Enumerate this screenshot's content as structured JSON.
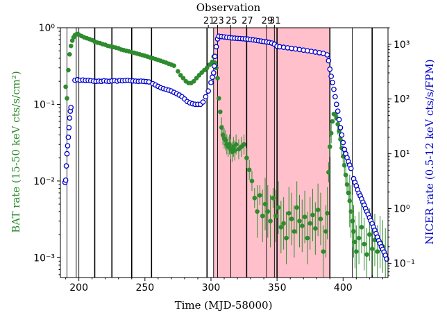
{
  "chart_data": {
    "type": "scatter",
    "title": "Observation",
    "xlabel": "Time (MJD-58000)",
    "ylabel_left": "BAT rate (15-50 keV cts/s/cm²)",
    "ylabel_right": "NICER rate (0.5-12 keV cts/s/FPM)",
    "xlim": [
      186,
      434
    ],
    "ylim_left": [
      0.00055,
      1.0
    ],
    "ylim_right": [
      0.055,
      2000
    ],
    "yscale": "log",
    "x_ticks": [
      200,
      250,
      300,
      350,
      400
    ],
    "x_tick_labels": [
      "200",
      "250",
      "300",
      "350",
      "400"
    ],
    "y_left_ticks": [
      1.0,
      0.1,
      0.01,
      0.001
    ],
    "y_left_tick_labels": [
      "10⁰",
      "10⁻¹",
      "10⁻²",
      "10⁻³"
    ],
    "y_right_ticks": [
      1000,
      100,
      10,
      1,
      0.1
    ],
    "y_right_tick_labels": [
      "10³",
      "10²",
      "10¹",
      "10⁰",
      "10⁻¹"
    ],
    "top_tick_labels": [
      "21",
      "23",
      "25",
      "27",
      "29",
      "31"
    ],
    "shaded_region": [
      302,
      390
    ],
    "shaded_color": "#ffc0cb",
    "observation_lines": [
      191,
      198,
      200,
      212,
      225,
      240,
      255,
      297,
      302,
      305,
      315,
      327,
      342,
      348,
      350,
      390,
      407,
      422
    ],
    "series": [
      {
        "name": "BAT",
        "color": "#2e8b2e",
        "points": [
          [
            190,
            0.17
          ],
          [
            191,
            0.12
          ],
          [
            192,
            0.28
          ],
          [
            193,
            0.45
          ],
          [
            194,
            0.58
          ],
          [
            195,
            0.68
          ],
          [
            196,
            0.75
          ],
          [
            197,
            0.8
          ],
          [
            198,
            0.82
          ],
          [
            199,
            0.83
          ],
          [
            200,
            0.81
          ],
          [
            202,
            0.78
          ],
          [
            204,
            0.75
          ],
          [
            206,
            0.73
          ],
          [
            208,
            0.71
          ],
          [
            210,
            0.69
          ],
          [
            212,
            0.66
          ],
          [
            214,
            0.64
          ],
          [
            216,
            0.63
          ],
          [
            218,
            0.61
          ],
          [
            220,
            0.6
          ],
          [
            222,
            0.58
          ],
          [
            224,
            0.57
          ],
          [
            226,
            0.56
          ],
          [
            228,
            0.55
          ],
          [
            230,
            0.54
          ],
          [
            232,
            0.52
          ],
          [
            234,
            0.51
          ],
          [
            236,
            0.5
          ],
          [
            238,
            0.49
          ],
          [
            240,
            0.48
          ],
          [
            242,
            0.47
          ],
          [
            244,
            0.46
          ],
          [
            246,
            0.45
          ],
          [
            248,
            0.44
          ],
          [
            250,
            0.43
          ],
          [
            252,
            0.42
          ],
          [
            254,
            0.41
          ],
          [
            256,
            0.4
          ],
          [
            258,
            0.39
          ],
          [
            260,
            0.38
          ],
          [
            262,
            0.37
          ],
          [
            264,
            0.36
          ],
          [
            266,
            0.35
          ],
          [
            268,
            0.34
          ],
          [
            270,
            0.33
          ],
          [
            272,
            0.32
          ],
          [
            275,
            0.27
          ],
          [
            277,
            0.24
          ],
          [
            279,
            0.22
          ],
          [
            281,
            0.2
          ],
          [
            283,
            0.19
          ],
          [
            285,
            0.19
          ],
          [
            287,
            0.2
          ],
          [
            289,
            0.22
          ],
          [
            291,
            0.24
          ],
          [
            293,
            0.26
          ],
          [
            295,
            0.28
          ],
          [
            297,
            0.3
          ],
          [
            299,
            0.33
          ],
          [
            301,
            0.36
          ],
          [
            302,
            0.42
          ],
          [
            303,
            0.35
          ],
          [
            304,
            0.3
          ],
          [
            305,
            0.22
          ],
          [
            306,
            0.12
          ],
          [
            307,
            0.08
          ],
          [
            308,
            0.05
          ],
          [
            309,
            0.04
          ],
          [
            310,
            0.036
          ],
          [
            311,
            0.034
          ],
          [
            312,
            0.03
          ],
          [
            313,
            0.028
          ],
          [
            314,
            0.03
          ],
          [
            315,
            0.026
          ],
          [
            316,
            0.024
          ],
          [
            317,
            0.028
          ],
          [
            318,
            0.025
          ],
          [
            319,
            0.03
          ],
          [
            321,
            0.026
          ],
          [
            323,
            0.028
          ],
          [
            325,
            0.03
          ],
          [
            327,
            0.02
          ],
          [
            329,
            0.014
          ],
          [
            331,
            0.01
          ],
          [
            333,
            0.006
          ],
          [
            335,
            0.004
          ],
          [
            337,
            0.0065
          ],
          [
            339,
            0.0035
          ],
          [
            341,
            0.005
          ],
          [
            343,
            0.004
          ],
          [
            345,
            0.003
          ],
          [
            347,
            0.006
          ],
          [
            349,
            0.0035
          ],
          [
            351,
            0.0045
          ],
          [
            353,
            0.0025
          ],
          [
            355,
            0.0028
          ],
          [
            357,
            0.0018
          ],
          [
            359,
            0.0038
          ],
          [
            361,
            0.0032
          ],
          [
            363,
            0.0022
          ],
          [
            365,
            0.0045
          ],
          [
            367,
            0.003
          ],
          [
            369,
            0.0026
          ],
          [
            371,
            0.0034
          ],
          [
            373,
            0.0018
          ],
          [
            375,
            0.0028
          ],
          [
            377,
            0.0036
          ],
          [
            379,
            0.0024
          ],
          [
            381,
            0.0042
          ],
          [
            383,
            0.0032
          ],
          [
            385,
            0.0012
          ],
          [
            387,
            0.0022
          ],
          [
            388,
            0.0038
          ],
          [
            389,
            0.013
          ],
          [
            390,
            0.028
          ],
          [
            391,
            0.042
          ],
          [
            392,
            0.06
          ],
          [
            393,
            0.075
          ],
          [
            394,
            0.073
          ],
          [
            395,
            0.066
          ],
          [
            396,
            0.055
          ],
          [
            397,
            0.045
          ],
          [
            398,
            0.035
          ],
          [
            399,
            0.027
          ],
          [
            400,
            0.021
          ],
          [
            401,
            0.016
          ],
          [
            402,
            0.012
          ],
          [
            403,
            0.009
          ],
          [
            404,
            0.007
          ],
          [
            405,
            0.0055
          ],
          [
            406,
            0.004
          ],
          [
            407,
            0.003
          ],
          [
            408,
            0.0022
          ],
          [
            409,
            0.0016
          ],
          [
            410,
            0.0012
          ],
          [
            412,
            0.0018
          ],
          [
            414,
            0.0025
          ],
          [
            416,
            0.0015
          ],
          [
            418,
            0.0011
          ],
          [
            420,
            0.002
          ],
          [
            422,
            0.0013
          ],
          [
            424,
            0.0017
          ],
          [
            426,
            0.0012
          ],
          [
            428,
            0.0016
          ],
          [
            430,
            0.0014
          ],
          [
            432,
            0.0011
          ]
        ]
      },
      {
        "name": "NICER",
        "color": "#0000cc",
        "points": [
          [
            189.5,
            3.0
          ],
          [
            190,
            3.3
          ],
          [
            190.5,
            6
          ],
          [
            191,
            10
          ],
          [
            191.5,
            14
          ],
          [
            192,
            20
          ],
          [
            192.5,
            30
          ],
          [
            193,
            45
          ],
          [
            193.5,
            60
          ],
          [
            194,
            70
          ],
          [
            197,
            220
          ],
          [
            199,
            225
          ],
          [
            201,
            220
          ],
          [
            203,
            222
          ],
          [
            205,
            218
          ],
          [
            207,
            220
          ],
          [
            209,
            216
          ],
          [
            211,
            212
          ],
          [
            213,
            210
          ],
          [
            215,
            212
          ],
          [
            217,
            210
          ],
          [
            219,
            215
          ],
          [
            221,
            212
          ],
          [
            223,
            210
          ],
          [
            225,
            214
          ],
          [
            227,
            216
          ],
          [
            229,
            212
          ],
          [
            231,
            218
          ],
          [
            233,
            215
          ],
          [
            235,
            218
          ],
          [
            237,
            220
          ],
          [
            239,
            216
          ],
          [
            241,
            214
          ],
          [
            243,
            212
          ],
          [
            245,
            210
          ],
          [
            247,
            212
          ],
          [
            249,
            210
          ],
          [
            251,
            208
          ],
          [
            253,
            205
          ],
          [
            256,
            190
          ],
          [
            258,
            180
          ],
          [
            260,
            170
          ],
          [
            262,
            160
          ],
          [
            264,
            155
          ],
          [
            266,
            150
          ],
          [
            268,
            145
          ],
          [
            270,
            140
          ],
          [
            272,
            132
          ],
          [
            274,
            125
          ],
          [
            276,
            118
          ],
          [
            278,
            110
          ],
          [
            280,
            100
          ],
          [
            282,
            90
          ],
          [
            284,
            85
          ],
          [
            286,
            82
          ],
          [
            288,
            80
          ],
          [
            290,
            80
          ],
          [
            292,
            80
          ],
          [
            294,
            88
          ],
          [
            296,
            110
          ],
          [
            298,
            140
          ],
          [
            300,
            200
          ],
          [
            301,
            250
          ],
          [
            302,
            300
          ],
          [
            302.5,
            400
          ],
          [
            303,
            600
          ],
          [
            304,
            900
          ],
          [
            305,
            1250
          ],
          [
            306,
            1400
          ],
          [
            308,
            1380
          ],
          [
            310,
            1360
          ],
          [
            312,
            1340
          ],
          [
            314,
            1320
          ],
          [
            316,
            1300
          ],
          [
            318,
            1290
          ],
          [
            320,
            1280
          ],
          [
            322,
            1270
          ],
          [
            324,
            1260
          ],
          [
            326,
            1250
          ],
          [
            328,
            1240
          ],
          [
            330,
            1220
          ],
          [
            332,
            1200
          ],
          [
            334,
            1180
          ],
          [
            336,
            1160
          ],
          [
            338,
            1140
          ],
          [
            340,
            1120
          ],
          [
            342,
            1100
          ],
          [
            344,
            1080
          ],
          [
            346,
            1050
          ],
          [
            348,
            1000
          ],
          [
            350,
            920
          ],
          [
            352,
            900
          ],
          [
            355,
            880
          ],
          [
            358,
            860
          ],
          [
            361,
            840
          ],
          [
            364,
            820
          ],
          [
            367,
            800
          ],
          [
            370,
            780
          ],
          [
            373,
            760
          ],
          [
            376,
            740
          ],
          [
            379,
            720
          ],
          [
            382,
            700
          ],
          [
            385,
            680
          ],
          [
            388,
            640
          ],
          [
            389,
            500
          ],
          [
            390,
            350
          ],
          [
            391,
            260
          ],
          [
            392,
            200
          ],
          [
            393,
            150
          ],
          [
            394,
            110
          ],
          [
            395,
            80
          ],
          [
            396,
            60
          ],
          [
            397,
            42
          ],
          [
            398,
            30
          ],
          [
            399,
            22
          ],
          [
            400,
            16
          ],
          [
            401,
            12
          ],
          [
            402,
            10
          ],
          [
            403,
            8.5
          ],
          [
            404,
            7.2
          ],
          [
            405,
            6.2
          ],
          [
            406,
            5.4
          ],
          [
            408,
            3.5
          ],
          [
            409,
            3.0
          ],
          [
            410,
            2.6
          ],
          [
            411,
            2.2
          ],
          [
            412,
            1.9
          ],
          [
            413,
            1.7
          ],
          [
            414,
            1.5
          ],
          [
            415,
            1.3
          ],
          [
            416,
            1.15
          ],
          [
            417,
            1.0
          ],
          [
            418,
            0.88
          ],
          [
            419,
            0.78
          ],
          [
            420,
            0.68
          ],
          [
            421,
            0.6
          ],
          [
            422,
            0.53
          ],
          [
            423,
            0.46
          ],
          [
            424,
            0.4
          ],
          [
            425,
            0.35
          ],
          [
            426,
            0.3
          ],
          [
            427,
            0.26
          ],
          [
            428,
            0.23
          ],
          [
            429,
            0.2
          ],
          [
            430,
            0.18
          ],
          [
            431,
            0.16
          ],
          [
            432,
            0.14
          ],
          [
            433,
            0.12
          ]
        ]
      }
    ]
  }
}
